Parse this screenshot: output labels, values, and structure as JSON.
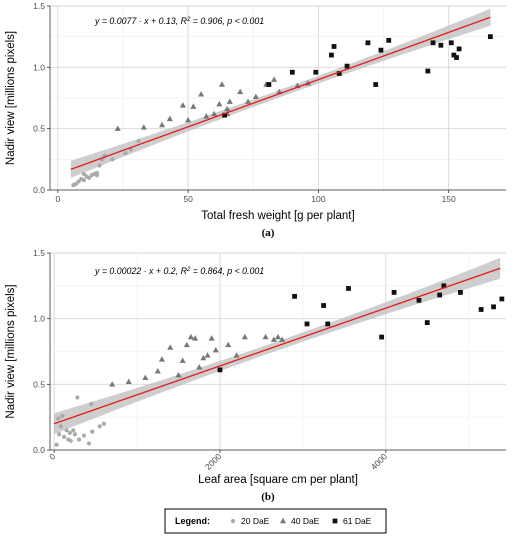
{
  "chart_data": [
    {
      "panel_label": "(a)",
      "type": "scatter",
      "xlabel": "Total fresh weight [g per plant]",
      "ylabel": "Nadir view [millions pixels]",
      "xlim": [
        -3,
        172
      ],
      "ylim": [
        0,
        1.5
      ],
      "xticks": [
        0,
        50,
        100,
        150
      ],
      "yticks": [
        0.0,
        0.5,
        1.0,
        1.5
      ],
      "x_tick_labels": [
        "0",
        "50",
        "100",
        "150"
      ],
      "y_tick_labels": [
        "0.0",
        "0.5",
        "1.0",
        "1.5"
      ],
      "x_tick_rotation": 0,
      "grid": true,
      "annotation": {
        "prefix": "y = 0.0077 · x + 0.13,  ",
        "r2_label": "R",
        "r2_value": " = 0.906,  ",
        "p_label": "p",
        "p_value": " < 0.001"
      },
      "fit": {
        "slope": 0.0077,
        "intercept": 0.13,
        "x_range": [
          5,
          166
        ],
        "band_halfwidth_ends": 0.07,
        "band_halfwidth_mid": 0.03,
        "line_color": "#e41a1c",
        "band_color": "#bdbdbd"
      },
      "series": [
        {
          "name": "20 DaE",
          "marker": "circle",
          "color": "#aaaaaa",
          "points": [
            [
              6,
              0.04
            ],
            [
              7,
              0.05
            ],
            [
              8,
              0.07
            ],
            [
              9,
              0.09
            ],
            [
              10,
              0.08
            ],
            [
              11,
              0.11
            ],
            [
              12,
              0.1
            ],
            [
              13,
              0.12
            ],
            [
              14,
              0.13
            ],
            [
              15,
              0.14
            ],
            [
              15,
              0.12
            ],
            [
              16,
              0.2
            ],
            [
              17,
              0.25
            ],
            [
              18,
              0.28
            ],
            [
              21,
              0.25
            ],
            [
              26,
              0.3
            ],
            [
              28,
              0.33
            ],
            [
              31,
              0.4
            ],
            [
              10,
              0.13
            ]
          ]
        },
        {
          "name": "40 DaE",
          "marker": "triangle",
          "color": "#777777",
          "points": [
            [
              23,
              0.5
            ],
            [
              33,
              0.51
            ],
            [
              40,
              0.53
            ],
            [
              43,
              0.58
            ],
            [
              48,
              0.69
            ],
            [
              50,
              0.57
            ],
            [
              52,
              0.68
            ],
            [
              55,
              0.78
            ],
            [
              57,
              0.6
            ],
            [
              60,
              0.62
            ],
            [
              62,
              0.7
            ],
            [
              63,
              0.86
            ],
            [
              65,
              0.62
            ],
            [
              66,
              0.72
            ],
            [
              70,
              0.8
            ],
            [
              73,
              0.72
            ],
            [
              76,
              0.76
            ],
            [
              80,
              0.86
            ],
            [
              83,
              0.9
            ],
            [
              85,
              0.8
            ],
            [
              92,
              0.85
            ],
            [
              96,
              0.87
            ],
            [
              65,
              0.66
            ]
          ]
        },
        {
          "name": "61 DaE",
          "marker": "square",
          "color": "#111111",
          "points": [
            [
              64,
              0.61
            ],
            [
              81,
              0.86
            ],
            [
              90,
              0.96
            ],
            [
              99,
              0.96
            ],
            [
              105,
              1.1
            ],
            [
              106,
              1.17
            ],
            [
              108,
              0.95
            ],
            [
              111,
              1.01
            ],
            [
              119,
              1.2
            ],
            [
              122,
              0.86
            ],
            [
              124,
              1.14
            ],
            [
              127,
              1.22
            ],
            [
              142,
              0.97
            ],
            [
              144,
              1.2
            ],
            [
              147,
              1.18
            ],
            [
              151,
              1.2
            ],
            [
              152,
              1.1
            ],
            [
              153,
              1.08
            ],
            [
              154,
              1.15
            ],
            [
              166,
              1.25
            ]
          ]
        }
      ]
    },
    {
      "panel_label": "(b)",
      "type": "scatter",
      "xlabel": "Leaf area [square cm per plant]",
      "ylabel": "Nadir view [millions pixels]",
      "xlim": [
        -50,
        5450
      ],
      "ylim": [
        0,
        1.5
      ],
      "xticks": [
        0,
        2000,
        4000
      ],
      "yticks": [
        0.0,
        0.5,
        1.0,
        1.5
      ],
      "x_tick_labels": [
        "0",
        "2000",
        "4000"
      ],
      "y_tick_labels": [
        "0.0",
        "0.5",
        "1.0",
        "1.5"
      ],
      "x_tick_rotation": -45,
      "grid": true,
      "annotation": {
        "prefix": "y = 0.00022 · x + 0.2,  ",
        "r2_label": "R",
        "r2_value": " = 0.864,  ",
        "p_label": "p",
        "p_value": " < 0.001"
      },
      "fit": {
        "slope": 0.00022,
        "intercept": 0.2,
        "x_range": [
          0,
          5380
        ],
        "band_halfwidth_ends": 0.08,
        "band_halfwidth_mid": 0.035,
        "line_color": "#e41a1c",
        "band_color": "#bdbdbd"
      },
      "series": [
        {
          "name": "20 DaE",
          "marker": "circle",
          "color": "#aaaaaa",
          "points": [
            [
              30,
              0.04
            ],
            [
              60,
              0.12
            ],
            [
              80,
              0.18
            ],
            [
              100,
              0.26
            ],
            [
              120,
              0.1
            ],
            [
              150,
              0.15
            ],
            [
              170,
              0.08
            ],
            [
              190,
              0.13
            ],
            [
              200,
              0.07
            ],
            [
              230,
              0.15
            ],
            [
              250,
              0.12
            ],
            [
              280,
              0.4
            ],
            [
              300,
              0.08
            ],
            [
              360,
              0.11
            ],
            [
              420,
              0.05
            ],
            [
              450,
              0.35
            ],
            [
              460,
              0.14
            ],
            [
              600,
              0.2
            ],
            [
              550,
              0.18
            ],
            [
              50,
              0.24
            ]
          ]
        },
        {
          "name": "40 DaE",
          "marker": "triangle",
          "color": "#777777",
          "points": [
            [
              700,
              0.5
            ],
            [
              900,
              0.52
            ],
            [
              1100,
              0.55
            ],
            [
              1250,
              0.6
            ],
            [
              1300,
              0.69
            ],
            [
              1400,
              0.78
            ],
            [
              1500,
              0.57
            ],
            [
              1550,
              0.68
            ],
            [
              1600,
              0.8
            ],
            [
              1650,
              0.86
            ],
            [
              1700,
              0.85
            ],
            [
              1750,
              0.63
            ],
            [
              1800,
              0.7
            ],
            [
              1850,
              0.72
            ],
            [
              1900,
              0.85
            ],
            [
              1950,
              0.76
            ],
            [
              2100,
              0.8
            ],
            [
              2200,
              0.72
            ],
            [
              2300,
              0.86
            ],
            [
              2550,
              0.86
            ],
            [
              2650,
              0.84
            ],
            [
              2700,
              0.86
            ],
            [
              2750,
              0.84
            ]
          ]
        },
        {
          "name": "61 DaE",
          "marker": "square",
          "color": "#111111",
          "points": [
            [
              2000,
              0.61
            ],
            [
              2900,
              1.17
            ],
            [
              3050,
              0.96
            ],
            [
              3250,
              1.1
            ],
            [
              3300,
              0.96
            ],
            [
              3550,
              1.23
            ],
            [
              3950,
              0.86
            ],
            [
              4100,
              1.2
            ],
            [
              4400,
              1.14
            ],
            [
              4500,
              0.97
            ],
            [
              4650,
              1.18
            ],
            [
              4700,
              1.25
            ],
            [
              4900,
              1.2
            ],
            [
              5150,
              1.07
            ],
            [
              5300,
              1.09
            ],
            [
              5400,
              1.15
            ]
          ]
        }
      ]
    }
  ],
  "legend": {
    "title": "Legend:",
    "items": [
      {
        "label": "20 DaE",
        "marker": "circle",
        "color": "#aaaaaa"
      },
      {
        "label": "40 DaE",
        "marker": "triangle",
        "color": "#777777"
      },
      {
        "label": "61 DaE",
        "marker": "square",
        "color": "#111111"
      }
    ]
  }
}
